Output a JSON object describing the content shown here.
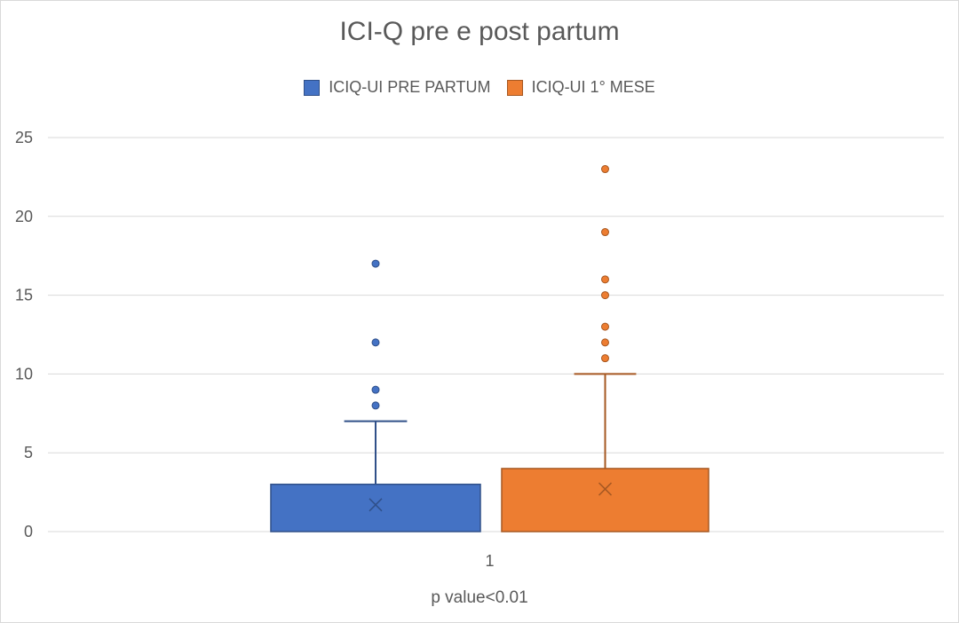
{
  "chart_data": {
    "type": "boxplot",
    "title": "ICI-Q pre e post partum",
    "xlabel": "",
    "ylabel": "",
    "annotation": "p value<0.01",
    "categories": [
      "1"
    ],
    "ylim": [
      0,
      25
    ],
    "yticks": [
      0,
      5,
      10,
      15,
      20,
      25
    ],
    "grid": true,
    "legend_position": "top",
    "series": [
      {
        "name": "ICIQ-UI PRE PARTUM",
        "color": "#4472c4",
        "min": 0,
        "q1": 0,
        "median": 0,
        "q3": 3,
        "whisker_high": 7,
        "mean": 1.7,
        "outliers": [
          8,
          9,
          12,
          17
        ]
      },
      {
        "name": "ICIQ-UI 1° MESE",
        "color": "#ed7d31",
        "min": 0,
        "q1": 0,
        "median": 0,
        "q3": 4,
        "whisker_high": 10,
        "mean": 2.7,
        "outliers": [
          11,
          12,
          13,
          15,
          16,
          19,
          23
        ]
      }
    ]
  }
}
